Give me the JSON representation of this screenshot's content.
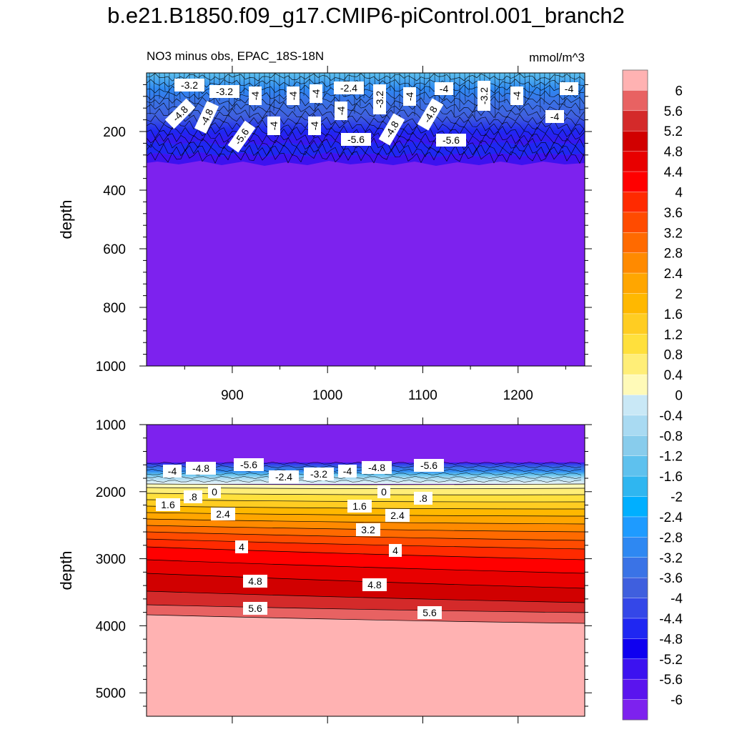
{
  "title": "b.e21.B1850.f09_g17.CMIP6-piControl.001_branch2",
  "chart_data": [
    {
      "type": "contour",
      "subtitle_left": "NO3 minus obs, EPAC_18S-18N",
      "subtitle_right": "mmol/m^3",
      "xlabel": "",
      "ylabel": "depth",
      "xlim": [
        810,
        1270
      ],
      "ylim": [
        1000,
        0
      ],
      "x_ticks": [
        "900",
        "1000",
        "1100",
        "1200"
      ],
      "x_tick_values": [
        900,
        1000,
        1100,
        1200
      ],
      "y_ticks": [
        "200",
        "400",
        "600",
        "800",
        "1000"
      ],
      "y_tick_values": [
        200,
        400,
        600,
        800,
        1000
      ],
      "contour_labels": [
        "-3.2",
        "-3.2",
        "-4",
        "-4",
        "-4",
        "-2.4",
        "-4",
        "-3.2",
        "-4",
        "-4",
        "-3.2",
        "-4",
        "-4",
        "-4.8",
        "-4.8",
        "-4",
        "-4",
        "-4.8",
        "-4.8",
        "-4",
        "-5.6",
        "-5.6",
        "-5.6"
      ]
    },
    {
      "type": "contour",
      "subtitle_left": "",
      "subtitle_right": "",
      "xlabel": "",
      "ylabel": "depth",
      "xlim": [
        810,
        1270
      ],
      "ylim": [
        5350,
        1000
      ],
      "y_ticks": [
        "1000",
        "2000",
        "3000",
        "4000",
        "5000"
      ],
      "y_tick_values": [
        1000,
        2000,
        3000,
        4000,
        5000
      ],
      "contour_labels": [
        "-4",
        "-4.8",
        "-5.6",
        "-2.4",
        "-3.2",
        "-4",
        "-4.8",
        "-5.6",
        "0",
        ".8",
        "1.6",
        "0",
        ".8",
        "1.6",
        "2.4",
        "2.4",
        "3.2",
        "4",
        "4",
        "4.8",
        "4.8",
        "5.6",
        "5.6"
      ]
    }
  ],
  "colorbar": {
    "labels": [
      "6",
      "5.6",
      "5.2",
      "4.8",
      "4.4",
      "4",
      "3.6",
      "3.2",
      "2.8",
      "2.4",
      "2",
      "1.6",
      "1.2",
      "0.8",
      "0.4",
      "0",
      "-0.4",
      "-0.8",
      "-1.2",
      "-1.6",
      "-2",
      "-2.4",
      "-2.8",
      "-3.2",
      "-3.6",
      "-4",
      "-4.4",
      "-4.8",
      "-5.2",
      "-5.6",
      "-6"
    ],
    "colors": [
      "#FFB2B2",
      "#E86262",
      "#D42A2A",
      "#D10000",
      "#E80000",
      "#FF0000",
      "#FF2A00",
      "#FF4B00",
      "#FF6A00",
      "#FF8A00",
      "#FFA600",
      "#FFB800",
      "#FFCD22",
      "#FFE03C",
      "#FFEE77",
      "#FFFAB8",
      "#C9E8F6",
      "#A9DAF2",
      "#88CCEC",
      "#5EC1EE",
      "#2FB6F0",
      "#00AFFF",
      "#1E9BFF",
      "#2E88F2",
      "#3A73E6",
      "#3F5FDE",
      "#3447E8",
      "#1F27F2",
      "#0F00F0",
      "#3C12F0",
      "#5A14EE",
      "#7D22EE"
    ]
  }
}
